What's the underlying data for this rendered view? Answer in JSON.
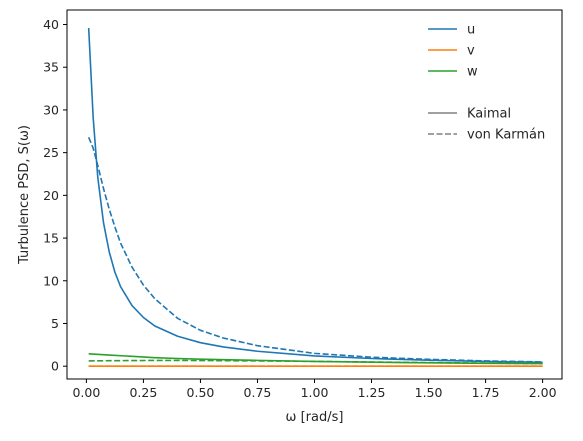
{
  "chart_data": {
    "type": "line",
    "xlabel": "ω [rad/s]",
    "ylabel": "Turbulence PSD, S(ω)",
    "xlim": [
      -0.085,
      2.085
    ],
    "ylim": [
      -1.5,
      41.7
    ],
    "x_ticks": [
      0.0,
      0.25,
      0.5,
      0.75,
      1.0,
      1.25,
      1.5,
      1.75,
      2.0
    ],
    "x_tick_labels": [
      "0.00",
      "0.25",
      "0.50",
      "0.75",
      "1.00",
      "1.25",
      "1.50",
      "1.75",
      "2.00"
    ],
    "y_ticks": [
      0,
      5,
      10,
      15,
      20,
      25,
      30,
      35,
      40
    ],
    "y_tick_labels": [
      "0",
      "5",
      "10",
      "15",
      "20",
      "25",
      "30",
      "35",
      "40"
    ],
    "grid": false,
    "legend_placement": "top-right",
    "legend": {
      "components": [
        {
          "label": "u",
          "color": "#1f77b4"
        },
        {
          "label": "v",
          "color": "#ff7f0e"
        },
        {
          "label": "w",
          "color": "#2ca02c"
        }
      ],
      "models": [
        {
          "label": "Kaimal",
          "style": "solid",
          "color": "#808080"
        },
        {
          "label": "von Karmán",
          "style": "dashed",
          "color": "#808080"
        }
      ]
    },
    "series": [
      {
        "component": "u",
        "model": "Kaimal",
        "color": "#1f77b4",
        "style": "solid",
        "x": [
          0.01,
          0.03,
          0.05,
          0.075,
          0.1,
          0.125,
          0.15,
          0.2,
          0.25,
          0.3,
          0.4,
          0.5,
          0.6,
          0.75,
          1.0,
          1.25,
          1.5,
          1.75,
          2.0
        ],
        "y": [
          39.6,
          29.0,
          22.1,
          16.8,
          13.4,
          11.0,
          9.3,
          7.1,
          5.7,
          4.7,
          3.5,
          2.75,
          2.25,
          1.75,
          1.2,
          0.9,
          0.7,
          0.56,
          0.45
        ]
      },
      {
        "component": "u",
        "model": "von Karmán",
        "color": "#1f77b4",
        "style": "dashed",
        "x": [
          0.01,
          0.03,
          0.05,
          0.075,
          0.1,
          0.125,
          0.15,
          0.2,
          0.25,
          0.3,
          0.4,
          0.5,
          0.6,
          0.75,
          1.0,
          1.25,
          1.5,
          1.75,
          2.0
        ],
        "y": [
          26.8,
          25.5,
          23.5,
          20.8,
          18.4,
          16.3,
          14.4,
          11.6,
          9.5,
          7.9,
          5.6,
          4.2,
          3.3,
          2.4,
          1.5,
          1.05,
          0.8,
          0.62,
          0.5
        ]
      },
      {
        "component": "v",
        "model": "Kaimal",
        "color": "#ff7f0e",
        "style": "solid",
        "x": [
          0.01,
          0.5,
          1.0,
          1.5,
          2.0
        ],
        "y": [
          0.0,
          0.0,
          0.0,
          0.0,
          0.0
        ]
      },
      {
        "component": "v",
        "model": "von Karmán",
        "color": "#ff7f0e",
        "style": "dashed",
        "x": [
          0.01,
          0.5,
          1.0,
          1.5,
          2.0
        ],
        "y": [
          0.0,
          0.0,
          0.0,
          0.0,
          0.0
        ]
      },
      {
        "component": "w",
        "model": "Kaimal",
        "color": "#2ca02c",
        "style": "solid",
        "x": [
          0.01,
          0.1,
          0.2,
          0.3,
          0.4,
          0.5,
          0.75,
          1.0,
          1.25,
          1.5,
          1.75,
          2.0
        ],
        "y": [
          1.45,
          1.3,
          1.15,
          1.0,
          0.9,
          0.82,
          0.68,
          0.56,
          0.47,
          0.4,
          0.34,
          0.3
        ]
      },
      {
        "component": "w",
        "model": "von Karmán",
        "color": "#2ca02c",
        "style": "dashed",
        "x": [
          0.01,
          0.1,
          0.2,
          0.3,
          0.4,
          0.5,
          0.75,
          1.0,
          1.25,
          1.5,
          1.75,
          2.0
        ],
        "y": [
          0.62,
          0.64,
          0.66,
          0.67,
          0.67,
          0.66,
          0.62,
          0.56,
          0.49,
          0.42,
          0.36,
          0.31
        ]
      }
    ]
  }
}
